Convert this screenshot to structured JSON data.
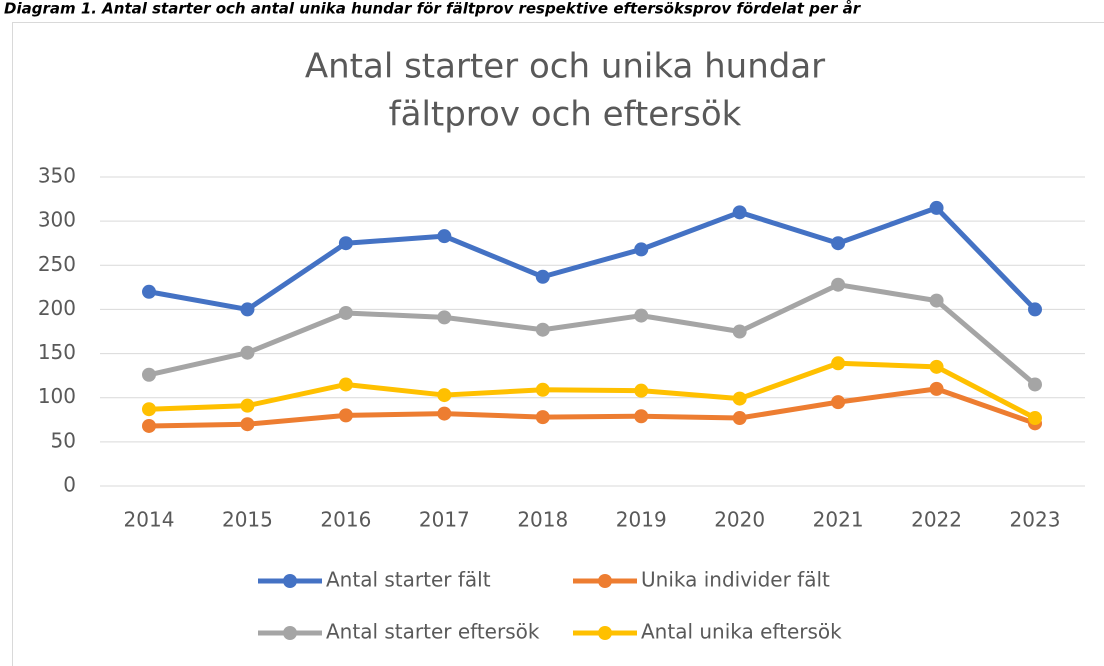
{
  "caption": "Diagram 1. Antal starter och antal unika hundar för fältprov respektive eftersöksprov fördelat per år",
  "chart_data": {
    "type": "line",
    "title": [
      "Antal starter och unika hundar",
      "fältprov och eftersök"
    ],
    "categories": [
      "2014",
      "2015",
      "2016",
      "2017",
      "2018",
      "2019",
      "2020",
      "2021",
      "2022",
      "2023"
    ],
    "series": [
      {
        "name": "Antal starter fält",
        "color": "#4472c4",
        "values": [
          220,
          200,
          275,
          283,
          237,
          268,
          310,
          275,
          315,
          200
        ]
      },
      {
        "name": "Unika individer fält",
        "color": "#ed7d31",
        "values": [
          68,
          70,
          80,
          82,
          78,
          79,
          77,
          95,
          110,
          71
        ]
      },
      {
        "name": "Antal starter eftersök",
        "color": "#a5a5a5",
        "values": [
          126,
          151,
          196,
          191,
          177,
          193,
          175,
          228,
          210,
          115
        ]
      },
      {
        "name": "Antal unika eftersök",
        "color": "#ffc000",
        "values": [
          87,
          91,
          115,
          103,
          109,
          108,
          99,
          139,
          135,
          77
        ]
      }
    ],
    "ylim": [
      0,
      350
    ],
    "yticks": [
      0,
      50,
      100,
      150,
      200,
      250,
      300,
      350
    ],
    "grid": true,
    "legend": "bottom"
  }
}
